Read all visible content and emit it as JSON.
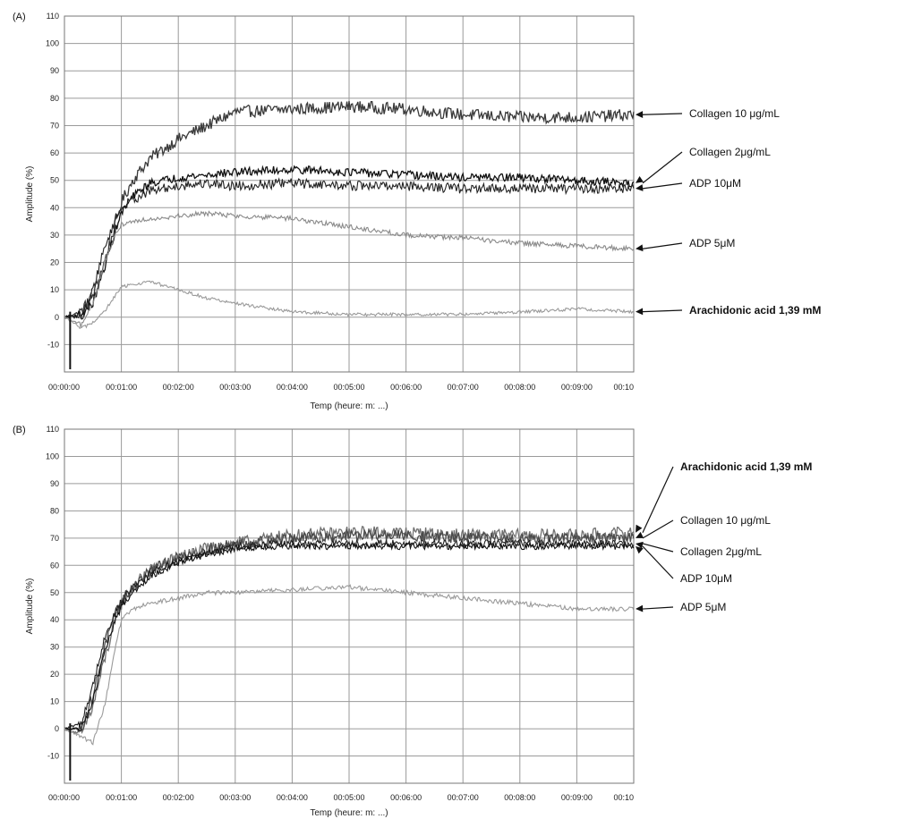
{
  "chart_data": [
    {
      "type": "line",
      "panel": "(A)",
      "ylabel": "Amplitude (%)",
      "xlabel": "Temp (heure: m: ...)",
      "ylim": [
        -20,
        110
      ],
      "y_ticks": [
        "-10",
        "0",
        "10",
        "20",
        "30",
        "40",
        "50",
        "60",
        "70",
        "80",
        "90",
        "100",
        "110"
      ],
      "x_ticks": [
        "00:00:00",
        "00:01:00",
        "00:02:00",
        "00:03:00",
        "00:04:00",
        "00:05:00",
        "00:06:00",
        "00:07:00",
        "00:08:00",
        "00:09:00",
        "00:10"
      ],
      "grid": true,
      "series": [
        {
          "name": "Collagen 10 μg/mL",
          "color": "#3a3a3a",
          "noise": 2.2,
          "x": [
            0,
            0.3,
            0.5,
            0.7,
            0.9,
            1.0,
            1.2,
            1.5,
            2.0,
            2.5,
            3.0,
            4.0,
            5.0,
            6.0,
            7.0,
            8.0,
            9.0,
            10.0
          ],
          "y": [
            0,
            2,
            8,
            20,
            34,
            42,
            50,
            58,
            65,
            70,
            75,
            76,
            77,
            76,
            74,
            73,
            73,
            74
          ]
        },
        {
          "name": "Collagen 2μg/mL",
          "color": "#111111",
          "noise": 1.5,
          "x": [
            0,
            0.3,
            0.5,
            0.7,
            0.9,
            1.0,
            1.2,
            1.5,
            2.0,
            2.5,
            3.0,
            4.0,
            5.0,
            6.0,
            7.0,
            8.0,
            9.0,
            10.0
          ],
          "y": [
            0,
            1,
            5,
            18,
            32,
            38,
            44,
            49,
            51,
            52,
            53,
            54,
            53,
            52,
            51,
            51,
            50,
            49
          ]
        },
        {
          "name": "ADP 10μM",
          "color": "#222222",
          "noise": 1.8,
          "x": [
            0,
            0.3,
            0.5,
            0.7,
            0.9,
            1.0,
            1.2,
            1.5,
            2.0,
            2.5,
            3.0,
            4.0,
            5.0,
            6.0,
            7.0,
            8.0,
            9.0,
            10.0
          ],
          "y": [
            0,
            0,
            10,
            25,
            36,
            40,
            43,
            46,
            48,
            49,
            48,
            49,
            48,
            48,
            47,
            47,
            47,
            47
          ]
        },
        {
          "name": "ADP 5μM",
          "color": "#8a8a8a",
          "noise": 0.9,
          "x": [
            0,
            0.3,
            0.5,
            0.7,
            0.9,
            1.0,
            1.2,
            1.5,
            2.0,
            2.5,
            3.0,
            4.0,
            5.0,
            6.0,
            7.0,
            8.0,
            9.0,
            10.0
          ],
          "y": [
            0,
            -3,
            5,
            20,
            30,
            34,
            35,
            36,
            37,
            38,
            37,
            36,
            33,
            30,
            29,
            27,
            26,
            25
          ]
        },
        {
          "name": "Arachidonic acid 1,39 mM",
          "color": "#9a9a9a",
          "noise": 0.6,
          "x": [
            0,
            0.3,
            0.5,
            0.7,
            0.9,
            1.0,
            1.2,
            1.5,
            2.0,
            2.5,
            3.0,
            4.0,
            5.0,
            6.0,
            7.0,
            8.0,
            9.0,
            10.0
          ],
          "y": [
            0,
            -4,
            -2,
            2,
            8,
            11,
            12,
            13,
            10,
            7,
            5,
            2,
            1,
            1,
            1,
            2,
            3,
            2
          ]
        }
      ],
      "annotations": [
        {
          "text": "Collagen 10 μg/mL",
          "bold": false,
          "y": 74
        },
        {
          "text": "Collagen 2μg/mL",
          "bold": false,
          "y": 49
        },
        {
          "text": "ADP 10μM",
          "bold": false,
          "y": 47
        },
        {
          "text": "ADP 5μM",
          "bold": false,
          "y": 25
        },
        {
          "text": "Arachidonic acid 1,39 mM",
          "bold": true,
          "y": 2
        }
      ]
    },
    {
      "type": "line",
      "panel": "(B)",
      "ylabel": "Amplitude (%)",
      "xlabel": "Temp (heure: m: ...)",
      "ylim": [
        -20,
        110
      ],
      "y_ticks": [
        "-10",
        "0",
        "10",
        "20",
        "30",
        "40",
        "50",
        "60",
        "70",
        "80",
        "90",
        "100",
        "110"
      ],
      "x_ticks": [
        "00:00:00",
        "00:01:00",
        "00:02:00",
        "00:03:00",
        "00:04:00",
        "00:05:00",
        "00:06:00",
        "00:07:00",
        "00:08:00",
        "00:09:00",
        "00:10"
      ],
      "grid": true,
      "series": [
        {
          "name": "Arachidonic acid 1,39 mM",
          "color": "#707070",
          "noise": 2.4,
          "x": [
            0,
            0.3,
            0.5,
            0.7,
            0.9,
            1.0,
            1.2,
            1.5,
            2.0,
            2.5,
            3.0,
            4.0,
            5.0,
            6.0,
            7.0,
            8.0,
            9.0,
            10.0
          ],
          "y": [
            0,
            -2,
            8,
            25,
            40,
            46,
            52,
            58,
            63,
            66,
            68,
            71,
            72,
            72,
            71,
            71,
            71,
            72
          ]
        },
        {
          "name": "Collagen 10 μg/mL",
          "color": "#4a4a4a",
          "noise": 2.0,
          "x": [
            0,
            0.3,
            0.5,
            0.7,
            0.9,
            1.0,
            1.2,
            1.5,
            2.0,
            2.5,
            3.0,
            4.0,
            5.0,
            6.0,
            7.0,
            8.0,
            9.0,
            10.0
          ],
          "y": [
            0,
            0,
            12,
            30,
            42,
            47,
            52,
            58,
            63,
            66,
            68,
            70,
            71,
            71,
            70,
            70,
            70,
            70
          ]
        },
        {
          "name": "Collagen 2μg/mL",
          "color": "#222222",
          "noise": 1.4,
          "x": [
            0,
            0.3,
            0.5,
            0.7,
            0.9,
            1.0,
            1.2,
            1.5,
            2.0,
            2.5,
            3.0,
            4.0,
            5.0,
            6.0,
            7.0,
            8.0,
            9.0,
            10.0
          ],
          "y": [
            0,
            2,
            16,
            33,
            43,
            47,
            52,
            57,
            62,
            65,
            67,
            68,
            68,
            68,
            68,
            68,
            68,
            68
          ]
        },
        {
          "name": "ADP 10μM",
          "color": "#111111",
          "noise": 1.2,
          "x": [
            0,
            0.3,
            0.5,
            0.7,
            0.9,
            1.0,
            1.2,
            1.5,
            2.0,
            2.5,
            3.0,
            4.0,
            5.0,
            6.0,
            7.0,
            8.0,
            9.0,
            10.0
          ],
          "y": [
            0,
            0,
            10,
            28,
            40,
            45,
            50,
            56,
            61,
            64,
            66,
            67,
            67,
            67,
            67,
            67,
            67,
            67
          ]
        },
        {
          "name": "ADP 5μM",
          "color": "#9a9a9a",
          "noise": 0.8,
          "x": [
            0,
            0.3,
            0.5,
            0.7,
            0.9,
            1.0,
            1.2,
            1.5,
            2.0,
            2.5,
            3.0,
            4.0,
            5.0,
            6.0,
            7.0,
            8.0,
            9.0,
            10.0
          ],
          "y": [
            0,
            -3,
            -5,
            8,
            30,
            40,
            44,
            46,
            48,
            50,
            50,
            51,
            52,
            50,
            48,
            46,
            44,
            44
          ]
        }
      ],
      "annotations": [
        {
          "text": "Arachidonic acid 1,39 mM",
          "bold": true,
          "y": 72
        },
        {
          "text": "Collagen 10 μg/mL",
          "bold": false,
          "y": 70
        },
        {
          "text": "Collagen 2μg/mL",
          "bold": false,
          "y": 68
        },
        {
          "text": "ADP 10μM",
          "bold": false,
          "y": 67
        },
        {
          "text": "ADP 5μM",
          "bold": false,
          "y": 44
        }
      ]
    }
  ]
}
